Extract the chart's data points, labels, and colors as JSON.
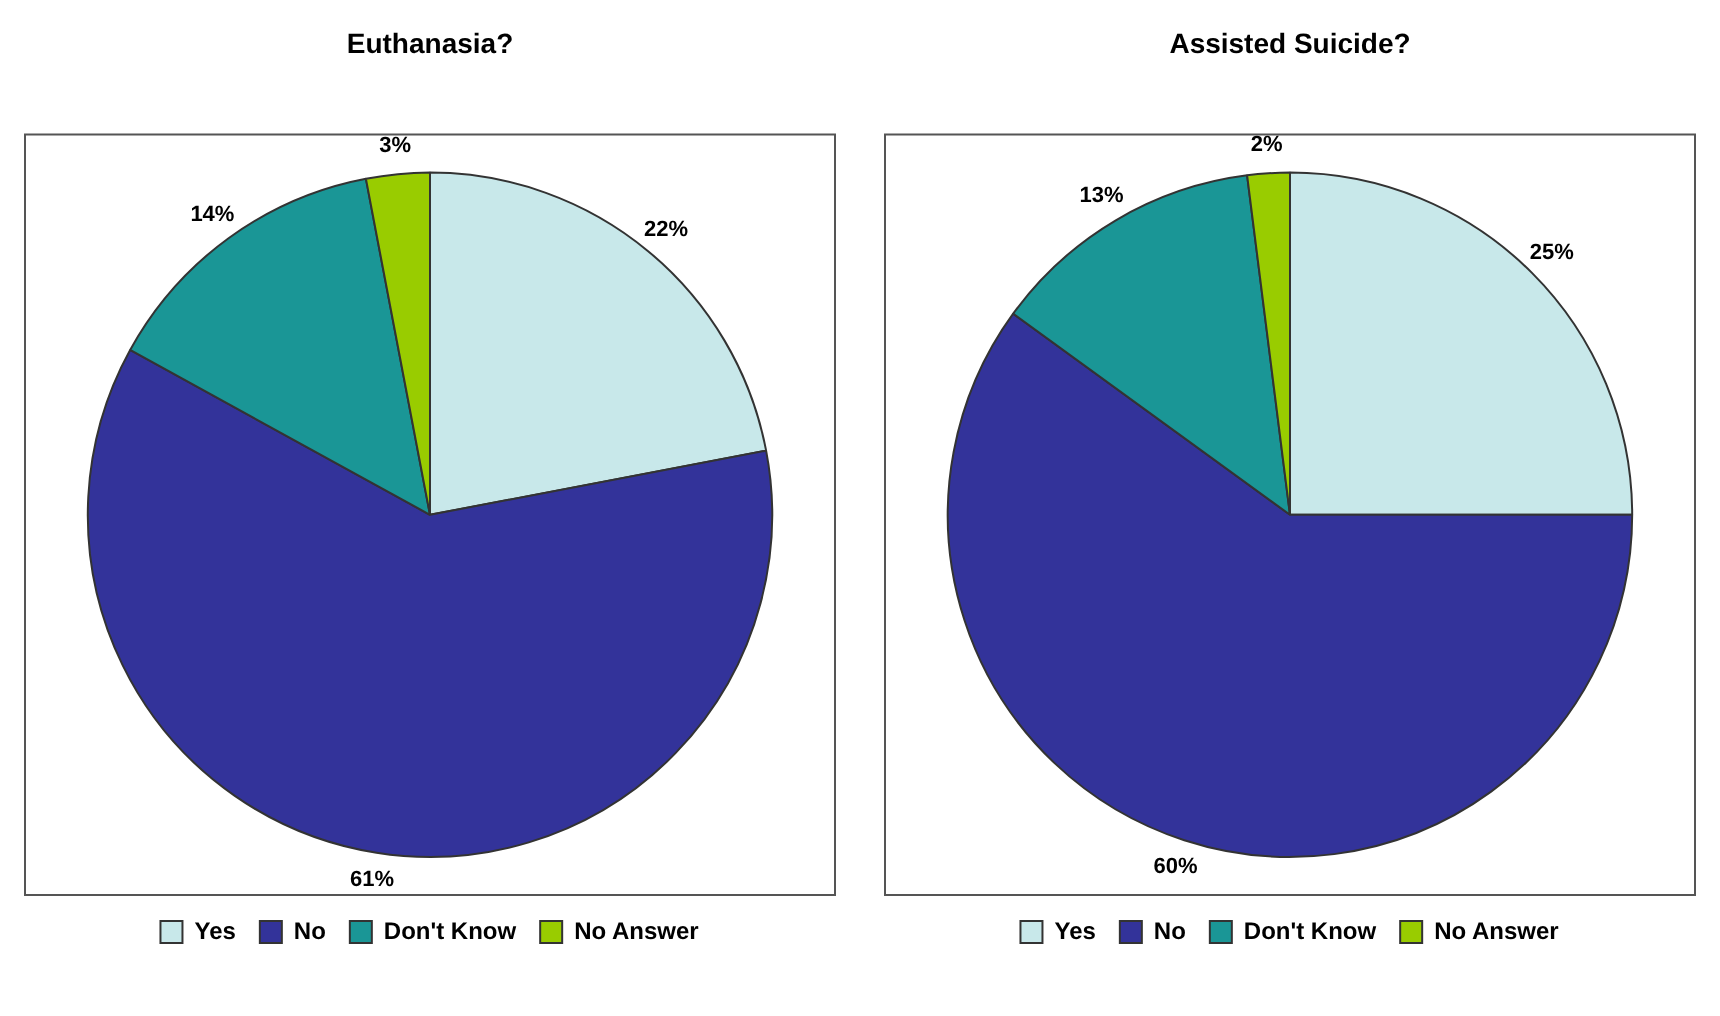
{
  "chart_data": [
    {
      "type": "pie",
      "title": "Euthanasia?",
      "categories": [
        "Yes",
        "No",
        "Don't Know",
        "No Answer"
      ],
      "values": [
        22,
        61,
        14,
        3
      ],
      "value_labels": [
        "22%",
        "61%",
        "14%",
        "3%"
      ],
      "colors": [
        "#c8e8ea",
        "#33339a",
        "#1a9696",
        "#99cc00"
      ],
      "legend": "bottom"
    },
    {
      "type": "pie",
      "title": "Assisted Suicide?",
      "categories": [
        "Yes",
        "No",
        "Don't Know",
        "No Answer"
      ],
      "values": [
        25,
        60,
        13,
        2
      ],
      "value_labels": [
        "25%",
        "60%",
        "13%",
        "2%"
      ],
      "colors": [
        "#c8e8ea",
        "#33339a",
        "#1a9696",
        "#99cc00"
      ],
      "legend": "bottom"
    }
  ]
}
